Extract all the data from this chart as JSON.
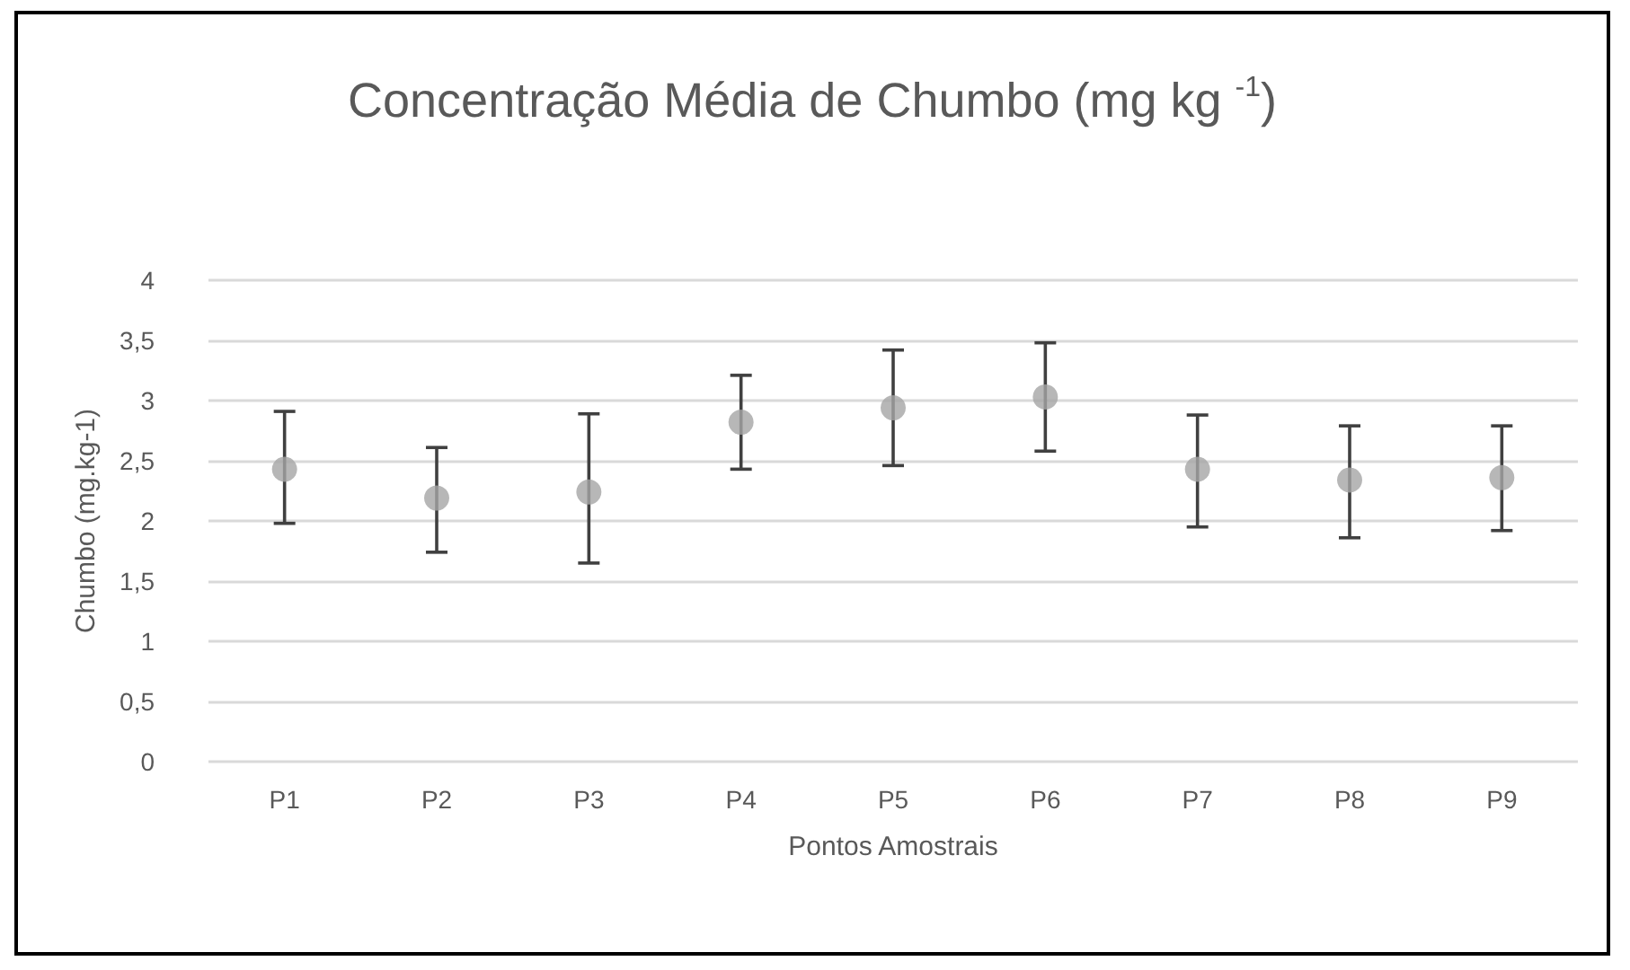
{
  "chart_data": {
    "type": "scatter",
    "title": "Concentração Média de Chumbo (mg kg $^{-1}$)",
    "xlabel": "Pontos Amostrais",
    "ylabel": "Chumbo (mg.kg-1)",
    "categories": [
      "P1",
      "P2",
      "P3",
      "P4",
      "P5",
      "P6",
      "P7",
      "P8",
      "P9"
    ],
    "series": [
      {
        "color": "#a5a5a5",
        "values": [
          2.43,
          2.19,
          2.24,
          2.82,
          2.94,
          3.03,
          2.43,
          2.34,
          2.36
        ],
        "errors": [
          [
            1.98,
            2.91
          ],
          [
            1.74,
            2.61
          ],
          [
            1.65,
            2.89
          ],
          [
            2.43,
            3.21
          ],
          [
            2.46,
            3.42
          ],
          [
            2.58,
            3.48
          ],
          [
            1.95,
            2.88
          ],
          [
            1.86,
            2.79
          ],
          [
            1.92,
            2.79
          ]
        ]
      }
    ],
    "ylim": [
      0,
      4
    ],
    "yticks": [
      0,
      {
        "value": 0.5,
        "label": "0,5"
      },
      1,
      {
        "value": 1.5,
        "label": "1,5"
      },
      2,
      {
        "value": 2.5,
        "label": "2,5"
      },
      3,
      {
        "value": 3.5,
        "label": "3,5"
      },
      4
    ],
    "grid": "y",
    "marker": "circle"
  }
}
